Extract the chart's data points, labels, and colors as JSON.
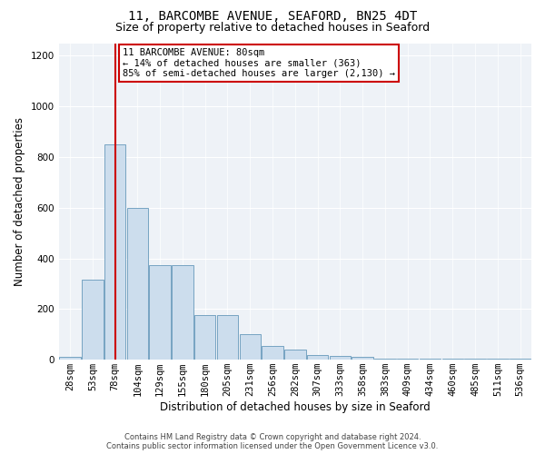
{
  "title_line1": "11, BARCOMBE AVENUE, SEAFORD, BN25 4DT",
  "title_line2": "Size of property relative to detached houses in Seaford",
  "xlabel": "Distribution of detached houses by size in Seaford",
  "ylabel": "Number of detached properties",
  "annotation_line1": "11 BARCOMBE AVENUE: 80sqm",
  "annotation_line2": "← 14% of detached houses are smaller (363)",
  "annotation_line3": "85% of semi-detached houses are larger (2,130) →",
  "footer_line1": "Contains HM Land Registry data © Crown copyright and database right 2024.",
  "footer_line2": "Contains public sector information licensed under the Open Government Licence v3.0.",
  "bar_color": "#ccdded",
  "bar_edge_color": "#6699bb",
  "vline_color": "#cc0000",
  "vline_x": 2,
  "annotation_box_color": "#cc0000",
  "categories": [
    "28sqm",
    "53sqm",
    "78sqm",
    "104sqm",
    "129sqm",
    "155sqm",
    "180sqm",
    "205sqm",
    "231sqm",
    "256sqm",
    "282sqm",
    "307sqm",
    "333sqm",
    "358sqm",
    "383sqm",
    "409sqm",
    "434sqm",
    "460sqm",
    "485sqm",
    "511sqm",
    "536sqm"
  ],
  "values": [
    10,
    315,
    850,
    600,
    375,
    375,
    175,
    175,
    100,
    55,
    40,
    20,
    15,
    10,
    5,
    5,
    5,
    5,
    5,
    5,
    5
  ],
  "ylim": [
    0,
    1250
  ],
  "yticks": [
    0,
    200,
    400,
    600,
    800,
    1000,
    1200
  ],
  "bg_color": "#eef2f7",
  "title_fontsize": 10,
  "subtitle_fontsize": 9,
  "axis_label_fontsize": 8.5,
  "tick_fontsize": 7.5,
  "annotation_fontsize": 7.5
}
